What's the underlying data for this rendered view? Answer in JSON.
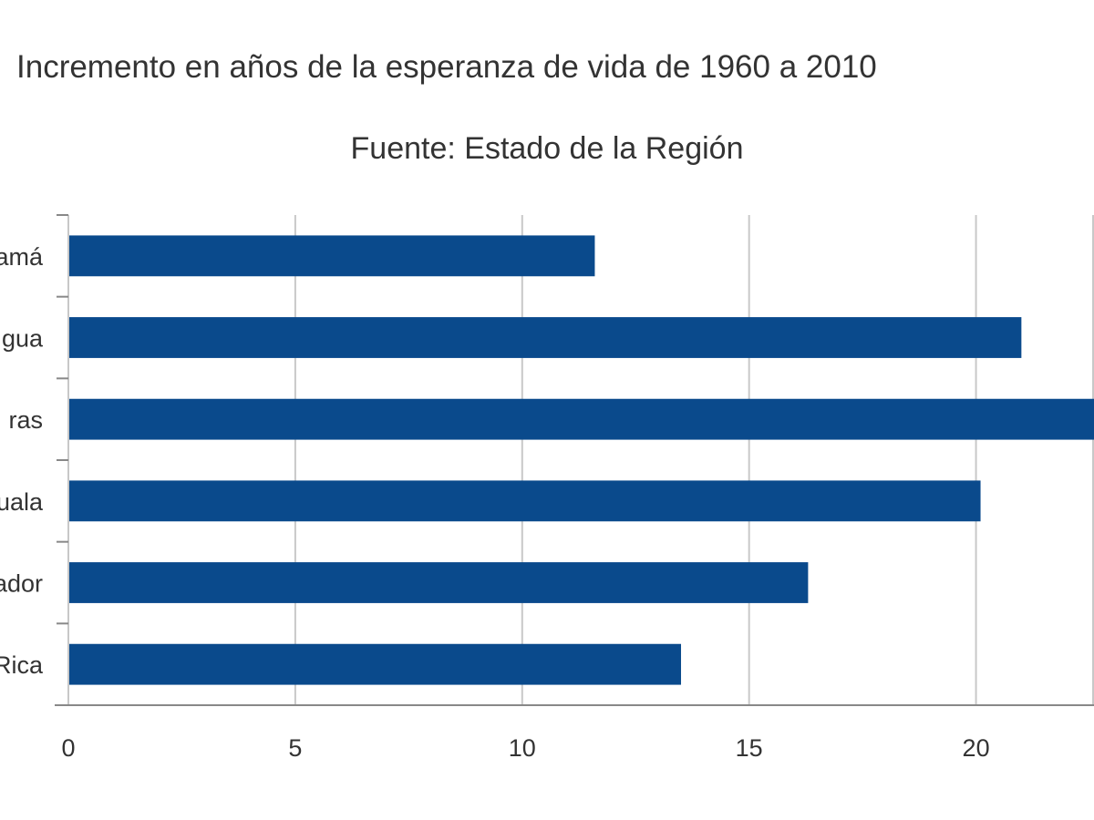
{
  "chart_data": {
    "type": "bar",
    "orientation": "horizontal",
    "title": "Incremento en años de la esperanza de vida de 1960 a 2010",
    "subtitle": "Fuente: Estado de la Región",
    "categories": [
      "amá",
      "gua",
      "ras",
      "uala",
      "ador",
      "Rica"
    ],
    "values": [
      11.6,
      21.0,
      22.6,
      20.1,
      16.3,
      13.5
    ],
    "x_ticks": [
      "0",
      "5",
      "10",
      "15",
      "20"
    ],
    "xlim": [
      0,
      22.6
    ],
    "grid": true,
    "colors": {
      "bar": "#0a4a8c",
      "grid": "#c8c8c8",
      "axis": "#888888"
    }
  }
}
